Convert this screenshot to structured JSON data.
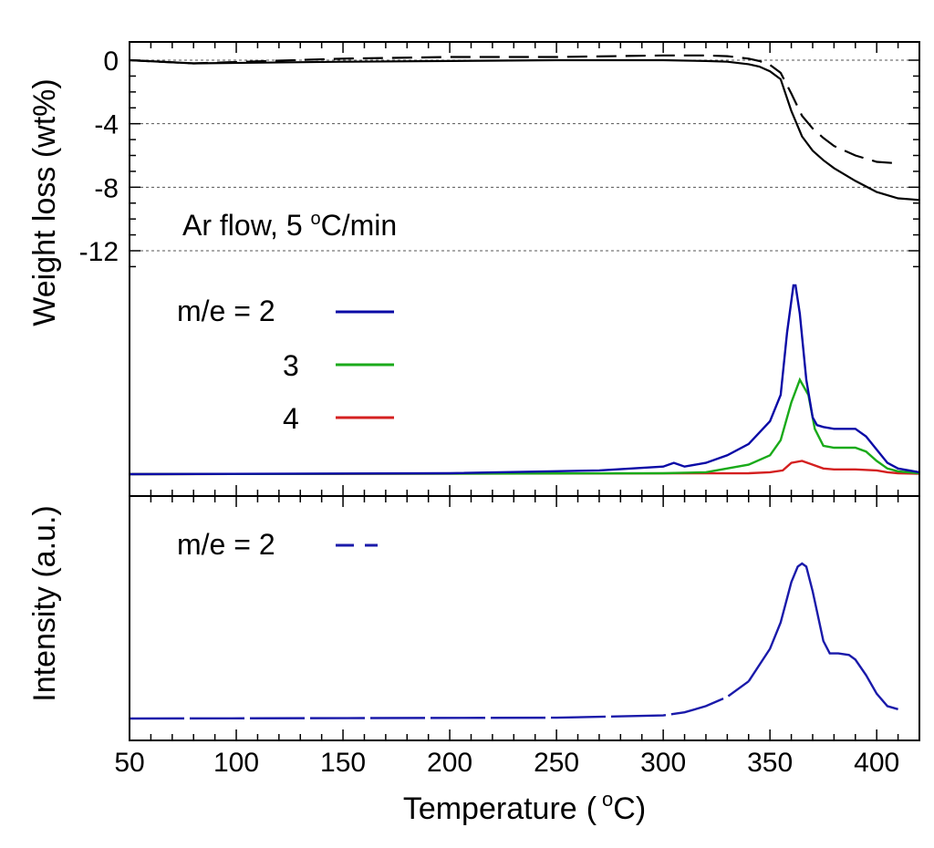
{
  "chart_data": {
    "type": "line",
    "x_axis": {
      "label_main": "Temperature",
      "label_paren_open": "(",
      "label_unit_sup": "o",
      "label_unit": "C",
      "label_paren_close": ")",
      "range": [
        50,
        420
      ],
      "ticks": [
        "50",
        "100",
        "150",
        "200",
        "250",
        "300",
        "350",
        "400"
      ],
      "tick_values": [
        50,
        100,
        150,
        200,
        250,
        300,
        350,
        400
      ]
    },
    "panel_tg": {
      "ylabel": "Weight loss (wt%)",
      "ylim": [
        1,
        -14
      ],
      "ticks": [
        "0",
        "-4",
        "-8",
        "-12"
      ],
      "tick_values": [
        0,
        -4,
        -8,
        -12
      ],
      "gridlines": [
        0,
        -4,
        -8,
        -12
      ],
      "annotation": {
        "pre": "Ar flow, 5 ",
        "sup": "o",
        "post": "C/min"
      },
      "series": [
        {
          "name": "solid",
          "style": "solid",
          "color": "#000000",
          "x": [
            50,
            80,
            150,
            200,
            250,
            300,
            320,
            330,
            340,
            345,
            350,
            355,
            360,
            365,
            370,
            375,
            380,
            390,
            400,
            410,
            420
          ],
          "y": [
            0,
            -0.2,
            -0.1,
            -0.05,
            0,
            0,
            -0.05,
            -0.1,
            -0.25,
            -0.4,
            -0.7,
            -1.2,
            -3.2,
            -4.8,
            -5.7,
            -6.3,
            -6.8,
            -7.6,
            -8.3,
            -8.7,
            -8.8
          ]
        },
        {
          "name": "dashed",
          "style": "dashed",
          "color": "#000000",
          "x": [
            50,
            80,
            150,
            200,
            250,
            300,
            320,
            330,
            340,
            345,
            350,
            355,
            360,
            365,
            370,
            375,
            380,
            390,
            400,
            410
          ],
          "y": [
            0,
            -0.2,
            0.1,
            0.2,
            0.2,
            0.3,
            0.3,
            0.25,
            0.1,
            -0.05,
            -0.3,
            -0.8,
            -2.1,
            -3.5,
            -4.3,
            -4.9,
            -5.4,
            -6.0,
            -6.4,
            -6.5
          ]
        }
      ]
    },
    "panel_ms": {
      "legend": {
        "prefix": "m/e = ",
        "entries": [
          "2",
          "3",
          "4"
        ]
      },
      "series": [
        {
          "name": "m/e = 2",
          "color": "#0a0aa6",
          "x": [
            50,
            200,
            270,
            300,
            305,
            310,
            320,
            330,
            340,
            350,
            355,
            358,
            361,
            362,
            364,
            367,
            370,
            372,
            375,
            380,
            390,
            395,
            400,
            405,
            410,
            420
          ],
          "y": [
            0,
            0.005,
            0.02,
            0.04,
            0.06,
            0.04,
            0.06,
            0.1,
            0.16,
            0.28,
            0.42,
            0.75,
            1.0,
            1.0,
            0.85,
            0.5,
            0.3,
            0.26,
            0.25,
            0.24,
            0.24,
            0.2,
            0.13,
            0.06,
            0.03,
            0.01
          ]
        },
        {
          "name": "m/e = 3",
          "color": "#1aaa1a",
          "x": [
            50,
            300,
            320,
            340,
            350,
            355,
            360,
            364,
            368,
            371,
            375,
            380,
            390,
            395,
            400,
            405,
            410,
            420
          ],
          "y": [
            0,
            0.005,
            0.01,
            0.05,
            0.1,
            0.18,
            0.38,
            0.5,
            0.42,
            0.24,
            0.15,
            0.14,
            0.14,
            0.12,
            0.07,
            0.03,
            0.015,
            0.005
          ]
        },
        {
          "name": "m/e = 4",
          "color": "#d42020",
          "x": [
            50,
            340,
            350,
            356,
            360,
            365,
            370,
            375,
            380,
            390,
            400,
            405,
            410,
            420
          ],
          "y": [
            0,
            0.005,
            0.01,
            0.02,
            0.06,
            0.07,
            0.05,
            0.03,
            0.025,
            0.025,
            0.02,
            0.01,
            0.005,
            0.002
          ]
        }
      ]
    },
    "panel_bottom": {
      "legend": {
        "prefix": "m/e = ",
        "entry": "2"
      },
      "series": [
        {
          "name": "m/e = 2",
          "style": "dashed-to-solid",
          "color": "#1a1aaa",
          "x": [
            50,
            250,
            300,
            310,
            320,
            330,
            340,
            350,
            355,
            360,
            363,
            365,
            367,
            370,
            375,
            378,
            382,
            387,
            390,
            395,
            400,
            405,
            410
          ],
          "y": [
            0,
            0.005,
            0.02,
            0.04,
            0.08,
            0.14,
            0.24,
            0.45,
            0.62,
            0.88,
            0.98,
            1.0,
            0.98,
            0.82,
            0.5,
            0.42,
            0.42,
            0.41,
            0.38,
            0.28,
            0.16,
            0.08,
            0.06
          ]
        }
      ]
    },
    "left_axis_title": {
      "line1": "Weight loss",
      "line1_unit": "(wt%)",
      "line2": "Intensity",
      "line2_unit": "(a.u.)"
    }
  }
}
